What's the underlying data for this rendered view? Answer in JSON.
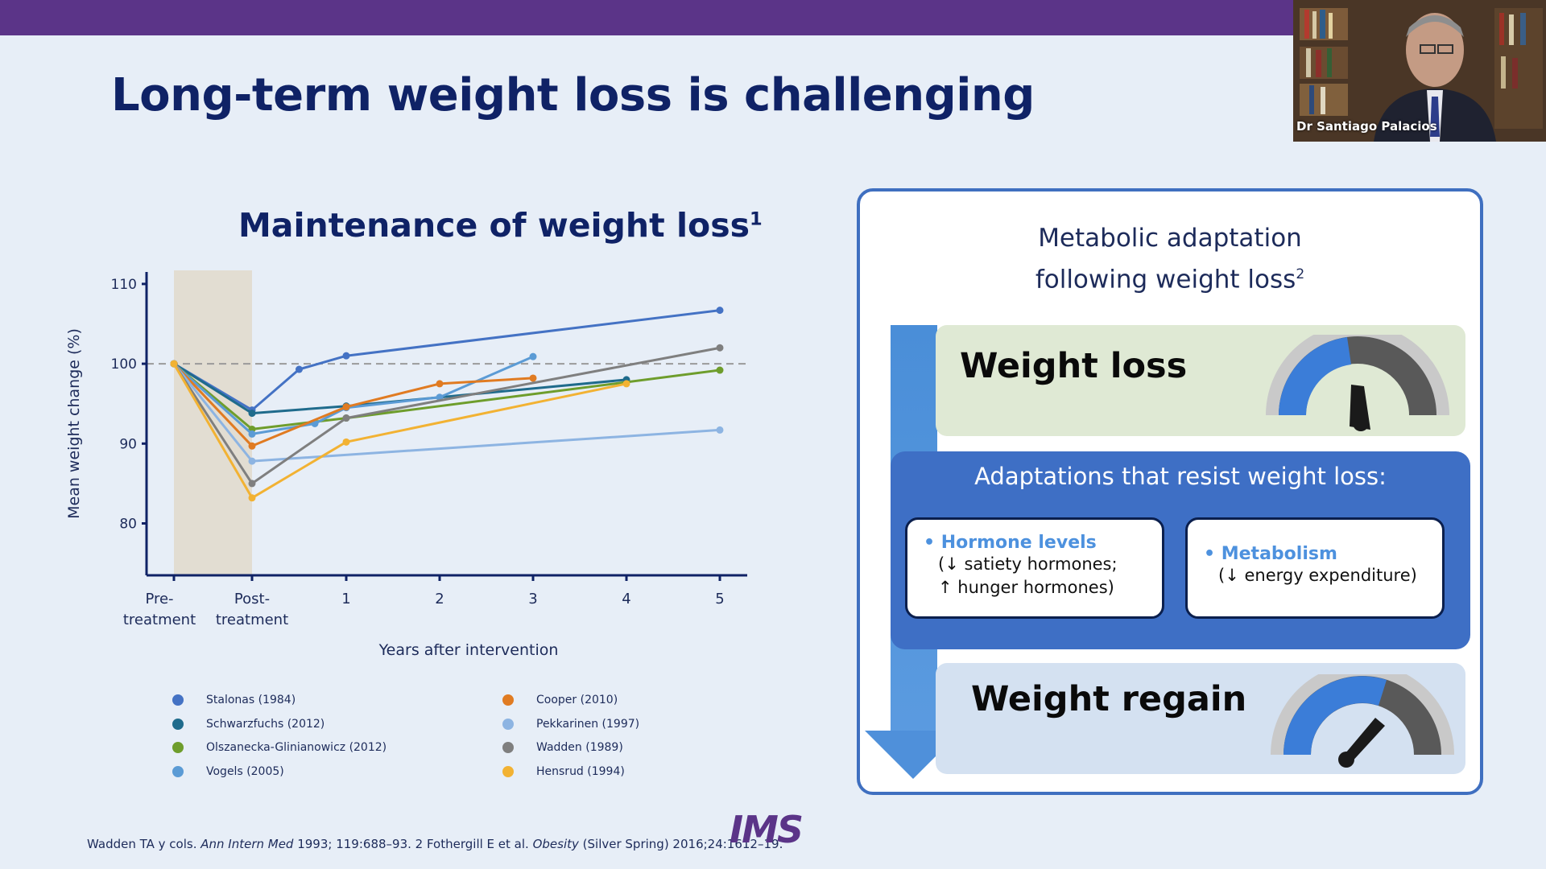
{
  "slide": {
    "title": "Long-term weight loss is challenging",
    "chart_title": "Maintenance of weight loss",
    "chart_title_ref": "1",
    "footnote": {
      "part1": "Wadden TA y cols. ",
      "journal1": "Ann Intern Med",
      "part2": " 1993; 119:688–93. 2 Fothergill E et al. ",
      "journal2": "Obesity",
      "part3": " (Silver Spring) 2016;24:1612–19."
    },
    "logo": "IMS",
    "colors": {
      "header_bar": "#5b3488",
      "title": "#0f2266",
      "accent_blue": "#3e6fc5",
      "background": "#e7eef7"
    }
  },
  "chart_data": {
    "type": "line",
    "title": "Maintenance of weight loss",
    "xlabel": "Years after intervention",
    "ylabel": "Mean weight change (%)",
    "x_tick_labels": [
      [
        "Pre-",
        "treatment"
      ],
      [
        "Post-",
        "treatment"
      ],
      [
        "1"
      ],
      [
        "2"
      ],
      [
        "3"
      ],
      [
        "4"
      ],
      [
        "5"
      ]
    ],
    "y_ticks": [
      80,
      90,
      100,
      110
    ],
    "ylim": [
      73.5,
      111.5
    ],
    "reference_line": 100,
    "treatment_band": "between Pre-treatment and Post-treatment",
    "legend_placement": "below",
    "series": [
      {
        "name": "Stalonas (1984)",
        "color": "#4472c4",
        "points": [
          [
            -1.3,
            100
          ],
          [
            -0.5,
            94.2
          ],
          [
            0.25,
            99.3
          ],
          [
            1,
            101
          ],
          [
            5,
            106.7
          ]
        ]
      },
      {
        "name": "Schwarzfuchs (2012)",
        "color": "#1f6b8c",
        "points": [
          [
            -1.3,
            100
          ],
          [
            -0.5,
            93.8
          ],
          [
            1,
            94.7
          ],
          [
            4,
            98
          ]
        ]
      },
      {
        "name": "Olszanecka-Glinianowicz (2012)",
        "color": "#6e9d2c",
        "points": [
          [
            -1.3,
            100
          ],
          [
            -0.5,
            91.8
          ],
          [
            1,
            93.2
          ],
          [
            5,
            99.2
          ]
        ]
      },
      {
        "name": "Vogels (2005)",
        "color": "#5b9bd5",
        "points": [
          [
            -1.3,
            100
          ],
          [
            -0.5,
            91.2
          ],
          [
            0.5,
            92.5
          ],
          [
            1,
            94.5
          ],
          [
            2,
            95.8
          ],
          [
            3,
            100.9
          ]
        ]
      },
      {
        "name": "Cooper (2010)",
        "color": "#e07b22",
        "points": [
          [
            -1.3,
            100
          ],
          [
            -0.5,
            89.7
          ],
          [
            1,
            94.6
          ],
          [
            2,
            97.5
          ],
          [
            3,
            98.2
          ]
        ]
      },
      {
        "name": "Pekkarinen (1997)",
        "color": "#8db4e2",
        "points": [
          [
            -1.3,
            100
          ],
          [
            -0.5,
            87.8
          ],
          [
            5,
            91.7
          ]
        ]
      },
      {
        "name": "Wadden (1989)",
        "color": "#7f7f7f",
        "points": [
          [
            -1.3,
            100
          ],
          [
            -0.5,
            85
          ],
          [
            1,
            93.2
          ],
          [
            5,
            102
          ]
        ]
      },
      {
        "name": "Hensrud (1994)",
        "color": "#f2b233",
        "points": [
          [
            -1.3,
            100
          ],
          [
            -0.5,
            83.2
          ],
          [
            1,
            90.2
          ],
          [
            4,
            97.5
          ]
        ]
      }
    ]
  },
  "metabolic_box": {
    "title_line1": "Metabolic adaptation",
    "title_line2": "following weight loss",
    "title_ref": "2",
    "weight_loss_label": "Weight loss",
    "adaptations_title": "Adaptations that resist weight loss:",
    "card1": {
      "heading": "Hormone levels",
      "line1": "(↓ satiety hormones;",
      "line2": "↑ hunger hormones)"
    },
    "card2": {
      "heading": "Metabolism",
      "line1": "(↓ energy expenditure)"
    },
    "weight_regain_label": "Weight regain",
    "gauge_icons": [
      "speedometer-gauge-icon",
      "speedometer-gauge-icon"
    ]
  },
  "video_overlay": {
    "speaker_name": "Dr Santiago Palacios"
  }
}
